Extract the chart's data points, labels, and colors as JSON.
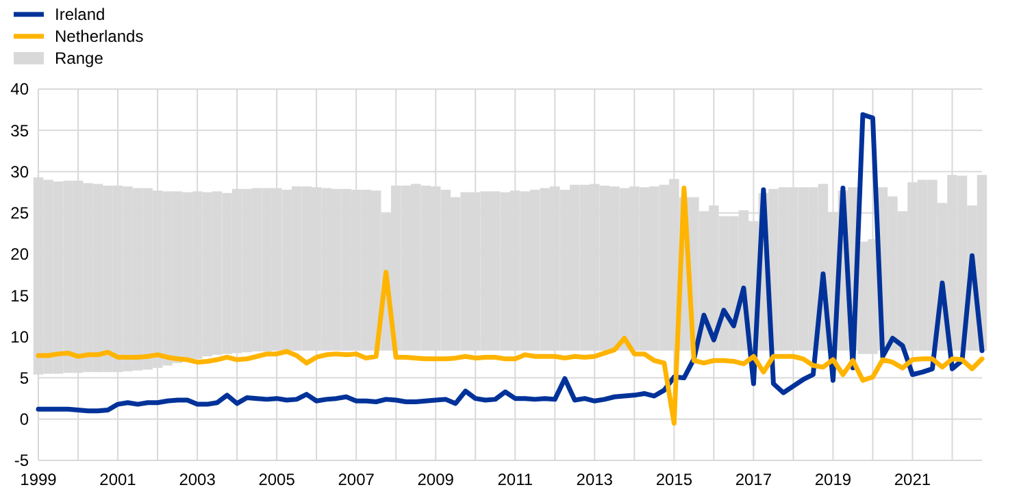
{
  "chart_data": {
    "type": "line",
    "xlim": [
      1999,
      2022.75
    ],
    "xticks": [
      1999,
      {
        "value": 2000,
        "label": null
      },
      2001,
      {
        "value": 2002,
        "label": null
      },
      2003,
      {
        "value": 2004,
        "label": null
      },
      2005,
      {
        "value": 2006,
        "label": null
      },
      2007,
      {
        "value": 2008,
        "label": null
      },
      2009,
      {
        "value": 2010,
        "label": null
      },
      2011,
      {
        "value": 2012,
        "label": null
      },
      2013,
      {
        "value": 2014,
        "label": null
      },
      2015,
      {
        "value": 2016,
        "label": null
      },
      2017,
      {
        "value": 2018,
        "label": null
      },
      2019,
      {
        "value": 2020,
        "label": null
      },
      2021,
      {
        "value": 2022,
        "label": null
      }
    ],
    "ylim": [
      -5,
      40
    ],
    "yticks": [
      -5,
      0,
      5,
      10,
      15,
      20,
      25,
      30,
      35,
      40
    ],
    "grid": true,
    "legend": "top left",
    "marker": "none",
    "line_style": "solid",
    "x": [
      1999,
      1999.25,
      1999.5,
      1999.75,
      2000,
      2000.25,
      2000.5,
      2000.75,
      2001,
      2001.25,
      2001.5,
      2001.75,
      2002,
      2002.25,
      2002.5,
      2002.75,
      2003,
      2003.25,
      2003.5,
      2003.75,
      2004,
      2004.25,
      2004.5,
      2004.75,
      2005,
      2005.25,
      2005.5,
      2005.75,
      2006,
      2006.25,
      2006.5,
      2006.75,
      2007,
      2007.25,
      2007.5,
      2007.75,
      2008,
      2008.25,
      2008.5,
      2008.75,
      2009,
      2009.25,
      2009.5,
      2009.75,
      2010,
      2010.25,
      2010.5,
      2010.75,
      2011,
      2011.25,
      2011.5,
      2011.75,
      2012,
      2012.25,
      2012.5,
      2012.75,
      2013,
      2013.25,
      2013.5,
      2013.75,
      2014,
      2014.25,
      2014.5,
      2014.75,
      2015,
      2015.25,
      2015.5,
      2015.75,
      2016,
      2016.25,
      2016.5,
      2016.75,
      2017,
      2017.25,
      2017.5,
      2017.75,
      2018,
      2018.25,
      2018.5,
      2018.75,
      2019,
      2019.25,
      2019.5,
      2019.75,
      2020,
      2020.25,
      2020.5,
      2020.75,
      2021,
      2021.25,
      2021.5,
      2021.75,
      2022,
      2022.25,
      2022.5,
      2022.75
    ],
    "series": [
      {
        "name": "Range",
        "type": "bar",
        "color": "#d9d9d9",
        "base": [
          5.4,
          5.5,
          5.5,
          5.6,
          5.6,
          5.7,
          5.7,
          5.7,
          5.7,
          5.8,
          5.9,
          6.0,
          6.2,
          6.5,
          6.8,
          7.0,
          7.3,
          7.6,
          7.8,
          7.9,
          8.0,
          8.1,
          8.2,
          8.2,
          8.3,
          8.3,
          8.3,
          8.3,
          8.3,
          8.3,
          8.3,
          8.3,
          8.3,
          8.3,
          8.3,
          8.3,
          8.3,
          8.3,
          8.3,
          8.3,
          8.3,
          8.3,
          8.3,
          8.3,
          8.3,
          8.3,
          8.3,
          8.3,
          8.3,
          8.3,
          8.3,
          8.3,
          8.3,
          8.3,
          8.3,
          8.3,
          8.3,
          8.3,
          8.3,
          8.3,
          8.3,
          8.3,
          8.3,
          8.3,
          8.3,
          8.3,
          8.3,
          8.3,
          8.3,
          8.3,
          8.3,
          8.3,
          8.3,
          8.3,
          8.3,
          8.3,
          8.3,
          8.3,
          8.3,
          8.3,
          8.3,
          8.3,
          8.3,
          7.9,
          7.9,
          8.3,
          8.3,
          8.3,
          8.3,
          8.3,
          8.3,
          8.3,
          8.3,
          8.3,
          8.3,
          8.3
        ],
        "values": [
          23.9,
          23.5,
          23.3,
          23.3,
          23.3,
          22.9,
          22.8,
          22.6,
          22.6,
          22.4,
          22.1,
          22.0,
          21.5,
          21.1,
          20.8,
          20.5,
          20.3,
          19.9,
          19.8,
          19.5,
          19.9,
          19.8,
          19.8,
          19.8,
          19.7,
          19.5,
          19.9,
          19.9,
          19.8,
          19.7,
          19.6,
          19.6,
          19.5,
          19.5,
          19.4,
          16.6,
          20.0,
          20.0,
          20.2,
          20.0,
          19.9,
          19.5,
          18.6,
          19.2,
          19.2,
          19.3,
          19.3,
          19.2,
          19.4,
          19.3,
          19.5,
          19.7,
          19.9,
          19.5,
          20.1,
          20.1,
          20.2,
          20.0,
          19.9,
          19.7,
          19.9,
          19.8,
          19.9,
          20.1,
          20.8,
          18.6,
          18.6,
          16.9,
          17.6,
          16.3,
          16.3,
          17.0,
          15.7,
          19.1,
          19.6,
          19.8,
          19.8,
          19.8,
          19.8,
          20.2,
          16.8,
          19.4,
          19.8,
          13.6,
          13.9,
          19.8,
          18.7,
          16.9,
          20.4,
          20.7,
          20.7,
          17.9,
          21.3,
          21.2,
          17.6,
          21.3
        ]
      },
      {
        "name": "Ireland",
        "color": "#003299",
        "values": [
          1.2,
          1.2,
          1.2,
          1.2,
          1.1,
          1.0,
          1.0,
          1.1,
          1.8,
          2.0,
          1.8,
          2.0,
          2.0,
          2.2,
          2.3,
          2.3,
          1.8,
          1.8,
          2.0,
          2.9,
          1.9,
          2.6,
          2.5,
          2.4,
          2.5,
          2.3,
          2.4,
          3.0,
          2.2,
          2.4,
          2.5,
          2.7,
          2.2,
          2.2,
          2.1,
          2.4,
          2.3,
          2.1,
          2.1,
          2.2,
          2.3,
          2.4,
          1.9,
          3.4,
          2.5,
          2.3,
          2.4,
          3.3,
          2.5,
          2.5,
          2.4,
          2.5,
          2.4,
          4.9,
          2.3,
          2.5,
          2.2,
          2.4,
          2.7,
          2.8,
          2.9,
          3.1,
          2.8,
          3.5,
          5.1,
          5.0,
          7.3,
          12.6,
          9.6,
          13.2,
          11.3,
          15.9,
          4.3,
          27.8,
          4.3,
          3.2,
          4.0,
          4.8,
          5.4,
          17.6,
          4.7,
          28.0,
          6.2,
          36.9,
          36.5,
          7.6,
          9.8,
          8.9,
          5.4,
          5.7,
          6.1,
          16.5,
          6.1,
          7.1,
          19.8,
          8.3
        ]
      },
      {
        "name": "Netherlands",
        "color": "#ffb400",
        "values": [
          7.7,
          7.7,
          7.9,
          8.0,
          7.6,
          7.8,
          7.8,
          8.1,
          7.5,
          7.5,
          7.5,
          7.6,
          7.8,
          7.5,
          7.3,
          7.2,
          6.9,
          7.0,
          7.2,
          7.5,
          7.2,
          7.3,
          7.6,
          7.9,
          7.9,
          8.2,
          7.7,
          6.8,
          7.5,
          7.8,
          7.9,
          7.8,
          7.9,
          7.4,
          7.6,
          17.8,
          7.5,
          7.5,
          7.4,
          7.3,
          7.3,
          7.3,
          7.4,
          7.6,
          7.4,
          7.5,
          7.5,
          7.3,
          7.3,
          7.8,
          7.6,
          7.6,
          7.6,
          7.4,
          7.6,
          7.5,
          7.6,
          8.0,
          8.4,
          9.8,
          7.9,
          7.9,
          7.1,
          6.8,
          -0.5,
          28.0,
          7.1,
          6.8,
          7.1,
          7.1,
          7.0,
          6.7,
          7.6,
          5.7,
          7.6,
          7.6,
          7.6,
          7.3,
          6.5,
          6.3,
          7.2,
          5.4,
          7.1,
          4.7,
          5.1,
          7.2,
          6.9,
          6.2,
          7.2,
          7.3,
          7.3,
          6.3,
          7.3,
          7.2,
          6.1,
          7.3
        ]
      }
    ]
  }
}
